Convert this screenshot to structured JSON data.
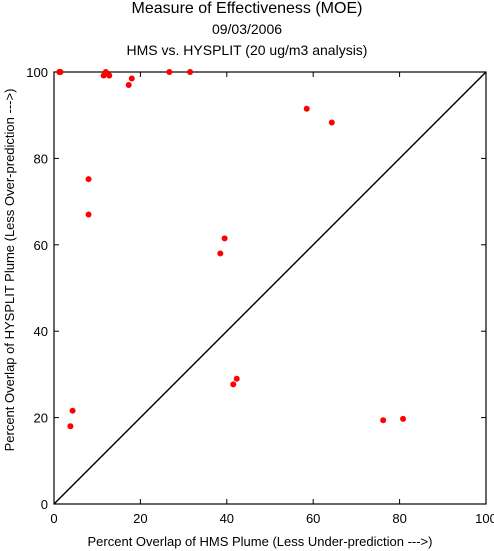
{
  "chart_data": {
    "type": "scatter",
    "title": "Measure of Effectiveness (MOE)",
    "subtitle_date": "09/03/2006",
    "subtitle_analysis": "HMS vs. HYSPLIT  (20 ug/m3 analysis)",
    "xlabel": "Percent Overlap of HMS Plume (Less Under-prediction --->)",
    "ylabel": "Percent Overlap of HYSPLIT Plume (Less Over-prediction --->)",
    "xlim": [
      0,
      100
    ],
    "ylim": [
      0,
      100
    ],
    "x_ticks": [
      "0",
      "20",
      "40",
      "60",
      "80",
      "100"
    ],
    "y_ticks": [
      "0",
      "20",
      "40",
      "60",
      "80",
      "100"
    ],
    "grid": false,
    "reference_line": "diagonal",
    "point_color": "#ff0000",
    "points": [
      {
        "x": 1.2,
        "y": 100
      },
      {
        "x": 1.5,
        "y": 100
      },
      {
        "x": 11.5,
        "y": 99.2
      },
      {
        "x": 12,
        "y": 100
      },
      {
        "x": 12.8,
        "y": 99.2
      },
      {
        "x": 17.3,
        "y": 97
      },
      {
        "x": 18,
        "y": 98.5
      },
      {
        "x": 26.7,
        "y": 100
      },
      {
        "x": 31.5,
        "y": 100
      },
      {
        "x": 58.5,
        "y": 91.5
      },
      {
        "x": 64.3,
        "y": 88.3
      },
      {
        "x": 8,
        "y": 75.2
      },
      {
        "x": 8,
        "y": 67
      },
      {
        "x": 39.5,
        "y": 61.5
      },
      {
        "x": 38.5,
        "y": 58
      },
      {
        "x": 41.5,
        "y": 27.7
      },
      {
        "x": 42.3,
        "y": 29
      },
      {
        "x": 3.8,
        "y": 18
      },
      {
        "x": 4.3,
        "y": 21.6
      },
      {
        "x": 76.2,
        "y": 19.4
      },
      {
        "x": 80.8,
        "y": 19.7
      }
    ]
  }
}
